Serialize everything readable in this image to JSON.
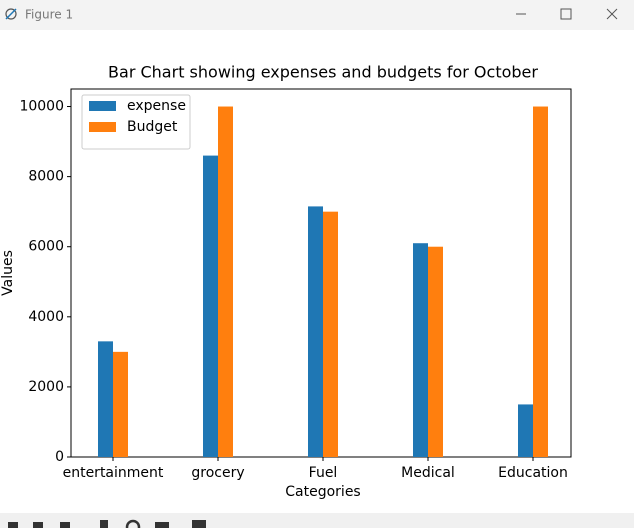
{
  "window": {
    "title": "Figure 1"
  },
  "chart_data": {
    "type": "bar",
    "title": "Bar Chart showing expenses and budgets for October",
    "x_label": "Categories",
    "y_label": "Values",
    "categories": [
      "entertainment",
      "grocery",
      "Fuel",
      "Medical",
      "Education"
    ],
    "series": [
      {
        "name": "expense",
        "color": "#1f77b4",
        "values": [
          3300,
          8600,
          7150,
          6100,
          1500
        ]
      },
      {
        "name": "Budget",
        "color": "#ff7f0e",
        "values": [
          3000,
          10000,
          7000,
          6000,
          10000
        ]
      }
    ],
    "ylim": [
      0,
      10500
    ],
    "yticks": [
      0,
      2000,
      4000,
      6000,
      8000,
      10000
    ],
    "grid": false,
    "legend": "upper-left"
  }
}
